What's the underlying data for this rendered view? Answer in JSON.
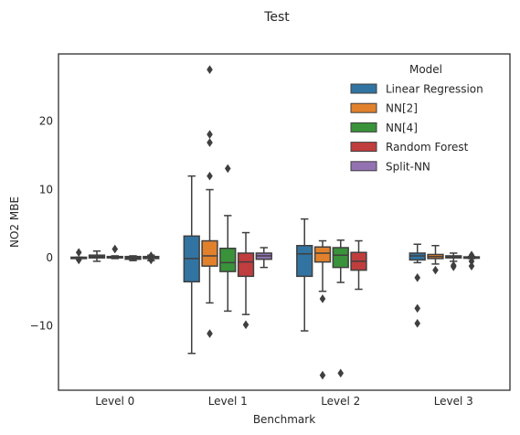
{
  "chart_data": {
    "type": "boxplot",
    "title": "Test",
    "xlabel": "Benchmark",
    "ylabel": "NO2 MBE",
    "categories": [
      "Level 0",
      "Level 1",
      "Level 2",
      "Level 3"
    ],
    "ylim": [
      -19.5,
      29.8
    ],
    "yticks": [
      -10,
      0,
      10,
      20
    ],
    "ytick_labels": [
      "−10",
      "0",
      "10",
      "20"
    ],
    "grid": false,
    "legend": {
      "title": "Model",
      "placement": "top-right",
      "entries": [
        "Linear Regression",
        "NN[2]",
        "NN[4]",
        "Random Forest",
        "Split-NN"
      ]
    },
    "series": [
      {
        "name": "Linear Regression",
        "color": "#3274a1",
        "boxes": [
          {
            "whislo": -0.1,
            "q1": -0.1,
            "med": -0.05,
            "q3": 0.0,
            "whishi": 0.0,
            "fliers": [
              0.7,
              -0.4
            ]
          },
          {
            "whislo": -14.1,
            "q1": -3.6,
            "med": -0.2,
            "q3": 3.1,
            "whishi": 11.9,
            "fliers": []
          },
          {
            "whislo": -10.8,
            "q1": -2.8,
            "med": 0.5,
            "q3": 1.7,
            "whishi": 5.6,
            "fliers": []
          },
          {
            "whislo": -0.8,
            "q1": -0.4,
            "med": 0.2,
            "q3": 0.6,
            "whishi": 1.9,
            "fliers": [
              -3.0,
              -7.5,
              -9.7
            ]
          }
        ]
      },
      {
        "name": "NN[2]",
        "color": "#e1812c",
        "boxes": [
          {
            "whislo": -0.6,
            "q1": -0.1,
            "med": 0.1,
            "q3": 0.3,
            "whishi": 0.9,
            "fliers": []
          },
          {
            "whislo": -6.7,
            "q1": -1.3,
            "med": 0.2,
            "q3": 2.4,
            "whishi": 9.9,
            "fliers": [
              27.5,
              18.0,
              16.8,
              11.9,
              -11.2
            ]
          },
          {
            "whislo": -5.0,
            "q1": -0.7,
            "med": 0.6,
            "q3": 1.5,
            "whishi": 2.4,
            "fliers": [
              -6.1,
              -17.3
            ]
          },
          {
            "whislo": -1.0,
            "q1": -0.2,
            "med": 0.1,
            "q3": 0.4,
            "whishi": 1.7,
            "fliers": [
              -1.9
            ]
          }
        ]
      },
      {
        "name": "NN[4]",
        "color": "#3a923a",
        "boxes": [
          {
            "whislo": -0.2,
            "q1": -0.1,
            "med": 0.0,
            "q3": 0.1,
            "whishi": 0.2,
            "fliers": [
              1.2
            ]
          },
          {
            "whislo": -7.9,
            "q1": -2.1,
            "med": -0.8,
            "q3": 1.3,
            "whishi": 6.1,
            "fliers": [
              13.0
            ]
          },
          {
            "whislo": -3.7,
            "q1": -1.5,
            "med": 0.3,
            "q3": 1.4,
            "whishi": 2.5,
            "fliers": [
              -17.0
            ]
          },
          {
            "whislo": -0.6,
            "q1": -0.1,
            "med": 0.1,
            "q3": 0.2,
            "whishi": 0.6,
            "fliers": [
              -1.2,
              -1.4
            ]
          }
        ]
      },
      {
        "name": "Random Forest",
        "color": "#c03d3e",
        "boxes": [
          {
            "whislo": -0.5,
            "q1": -0.3,
            "med": -0.1,
            "q3": 0.1,
            "whishi": 0.2,
            "fliers": []
          },
          {
            "whislo": -8.4,
            "q1": -2.8,
            "med": -0.7,
            "q3": 0.6,
            "whishi": 3.6,
            "fliers": [
              -9.9
            ]
          },
          {
            "whislo": -4.7,
            "q1": -1.9,
            "med": -0.6,
            "q3": 0.7,
            "whishi": 2.4,
            "fliers": []
          },
          {
            "whislo": -0.2,
            "q1": -0.1,
            "med": 0.0,
            "q3": 0.05,
            "whishi": 0.1,
            "fliers": [
              0.3,
              -0.6,
              -1.3
            ]
          }
        ]
      },
      {
        "name": "Split-NN",
        "color": "#9372b2",
        "boxes": [
          {
            "whislo": -0.5,
            "q1": -0.2,
            "med": -0.05,
            "q3": 0.1,
            "whishi": 0.3,
            "fliers": [
              0.2,
              -0.4
            ]
          },
          {
            "whislo": -1.5,
            "q1": -0.3,
            "med": 0.2,
            "q3": 0.6,
            "whishi": 1.4,
            "fliers": []
          },
          {
            "whislo": 0,
            "q1": 0,
            "med": 0,
            "q3": 0,
            "whishi": 0,
            "fliers": [],
            "empty": true
          },
          {
            "whislo": 0,
            "q1": 0,
            "med": 0,
            "q3": 0,
            "whishi": 0,
            "fliers": [],
            "empty": true
          }
        ]
      }
    ]
  }
}
